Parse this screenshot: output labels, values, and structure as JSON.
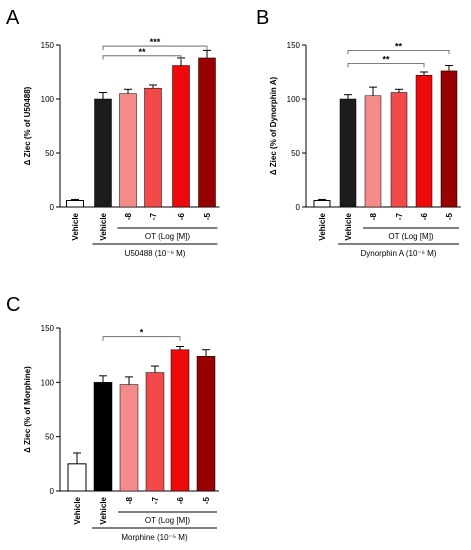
{
  "chart_data": [
    {
      "type": "bar",
      "panel_label": "A",
      "ylabel": "Δ Ziec (% of U50488)",
      "ylim": [
        0,
        150
      ],
      "yticks": [
        0,
        50,
        100,
        150
      ],
      "categories": [
        "Vehicle",
        "Vehicle",
        "-8",
        "-7",
        "-6",
        "-5"
      ],
      "values": [
        6,
        100,
        105,
        110,
        131,
        138
      ],
      "errors": [
        1,
        6,
        4,
        3,
        7,
        7
      ],
      "colors": [
        "#ffffff",
        "#1c1c1c",
        "#f58a8a",
        "#f24a4a",
        "#ee0a0a",
        "#990000"
      ],
      "group_label": "OT (Log [M])",
      "treatment_label": "U50488 (10⁻⁶ M)",
      "significance": [
        {
          "from": 1,
          "to": 5,
          "label": "***",
          "level": 149
        },
        {
          "from": 1,
          "to": 4,
          "label": "**",
          "level": 140
        }
      ]
    },
    {
      "type": "bar",
      "panel_label": "B",
      "ylabel": "Δ Ziec (% of Dynorphin A)",
      "ylim": [
        0,
        150
      ],
      "yticks": [
        0,
        50,
        100,
        150
      ],
      "categories": [
        "Vehicle",
        "Vehicle",
        "-8",
        "-7",
        "-6",
        "-5"
      ],
      "values": [
        6,
        100,
        103,
        106,
        122,
        126
      ],
      "errors": [
        1,
        4,
        8,
        3,
        3,
        5
      ],
      "colors": [
        "#ffffff",
        "#1c1c1c",
        "#f58a8a",
        "#f24a4a",
        "#ee0a0a",
        "#990000"
      ],
      "group_label": "OT (Log [M])",
      "treatment_label": "Dynorphin A (10⁻⁶ M)",
      "significance": [
        {
          "from": 1,
          "to": 5,
          "label": "**",
          "level": 145
        },
        {
          "from": 1,
          "to": 4,
          "label": "**",
          "level": 133
        }
      ]
    },
    {
      "type": "bar",
      "panel_label": "C",
      "ylabel": "Δ Ziec (% of Morphine)",
      "ylim": [
        0,
        150
      ],
      "yticks": [
        0,
        50,
        100,
        150
      ],
      "categories": [
        "Vehicle",
        "Vehicle",
        "-8",
        "-7",
        "-6",
        "-5"
      ],
      "values": [
        25,
        100,
        98,
        109,
        130,
        124
      ],
      "errors": [
        10,
        6,
        7,
        6,
        3,
        6
      ],
      "colors": [
        "#ffffff",
        "#000000",
        "#f58a8a",
        "#f24a4a",
        "#ee0a0a",
        "#990000"
      ],
      "group_label": "OT (Log [M])",
      "treatment_label": "Morphine (10⁻⁵ M)",
      "significance": [
        {
          "from": 1,
          "to": 4,
          "label": "*",
          "level": 142
        }
      ]
    }
  ]
}
